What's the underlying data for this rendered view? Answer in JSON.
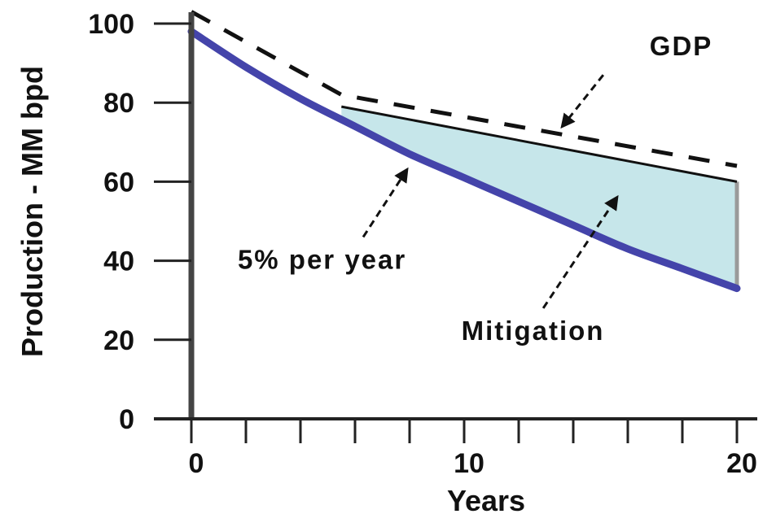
{
  "chart_data": {
    "type": "line",
    "title": "",
    "xlabel": "Years",
    "ylabel": "Production - MM bpd",
    "xlim": [
      0,
      20
    ],
    "ylim": [
      0,
      100
    ],
    "x_ticks": [
      0,
      10,
      20
    ],
    "y_ticks": [
      0,
      20,
      40,
      60,
      80,
      100
    ],
    "x_minor_step": 2,
    "grid": false,
    "legend": "none",
    "series": [
      {
        "key": "gdp",
        "style": "dashed",
        "color": "#111111",
        "x": [
          0,
          5.5,
          20
        ],
        "y": [
          103,
          82,
          64
        ]
      },
      {
        "key": "mitigated",
        "style": "solid",
        "color": "#111111",
        "x": [
          5.5,
          20
        ],
        "y": [
          79,
          60
        ]
      },
      {
        "key": "decline",
        "style": "solid-thick",
        "color": "#4444aa",
        "x": [
          0,
          2,
          4,
          6,
          8,
          10,
          12,
          14,
          16,
          18,
          20
        ],
        "y": [
          98,
          89,
          81,
          74,
          67,
          61,
          55,
          49,
          43,
          38,
          33
        ]
      }
    ],
    "fill_region": {
      "name": "Mitigation",
      "color": "#c6e6ea"
    },
    "annotations": [
      {
        "text": "GDP",
        "x": 16.8,
        "y": 92,
        "arrow_from": [
          15.1,
          87
        ],
        "arrow_to": [
          13.6,
          74
        ]
      },
      {
        "text": "5% per year",
        "x": 1.7,
        "y": 38,
        "arrow_from": [
          6.3,
          46
        ],
        "arrow_to": [
          7.9,
          63
        ]
      },
      {
        "text": "Mitigation",
        "x": 9.9,
        "y": 20,
        "arrow_from": [
          12.9,
          28
        ],
        "arrow_to": [
          15.6,
          56
        ]
      }
    ]
  }
}
